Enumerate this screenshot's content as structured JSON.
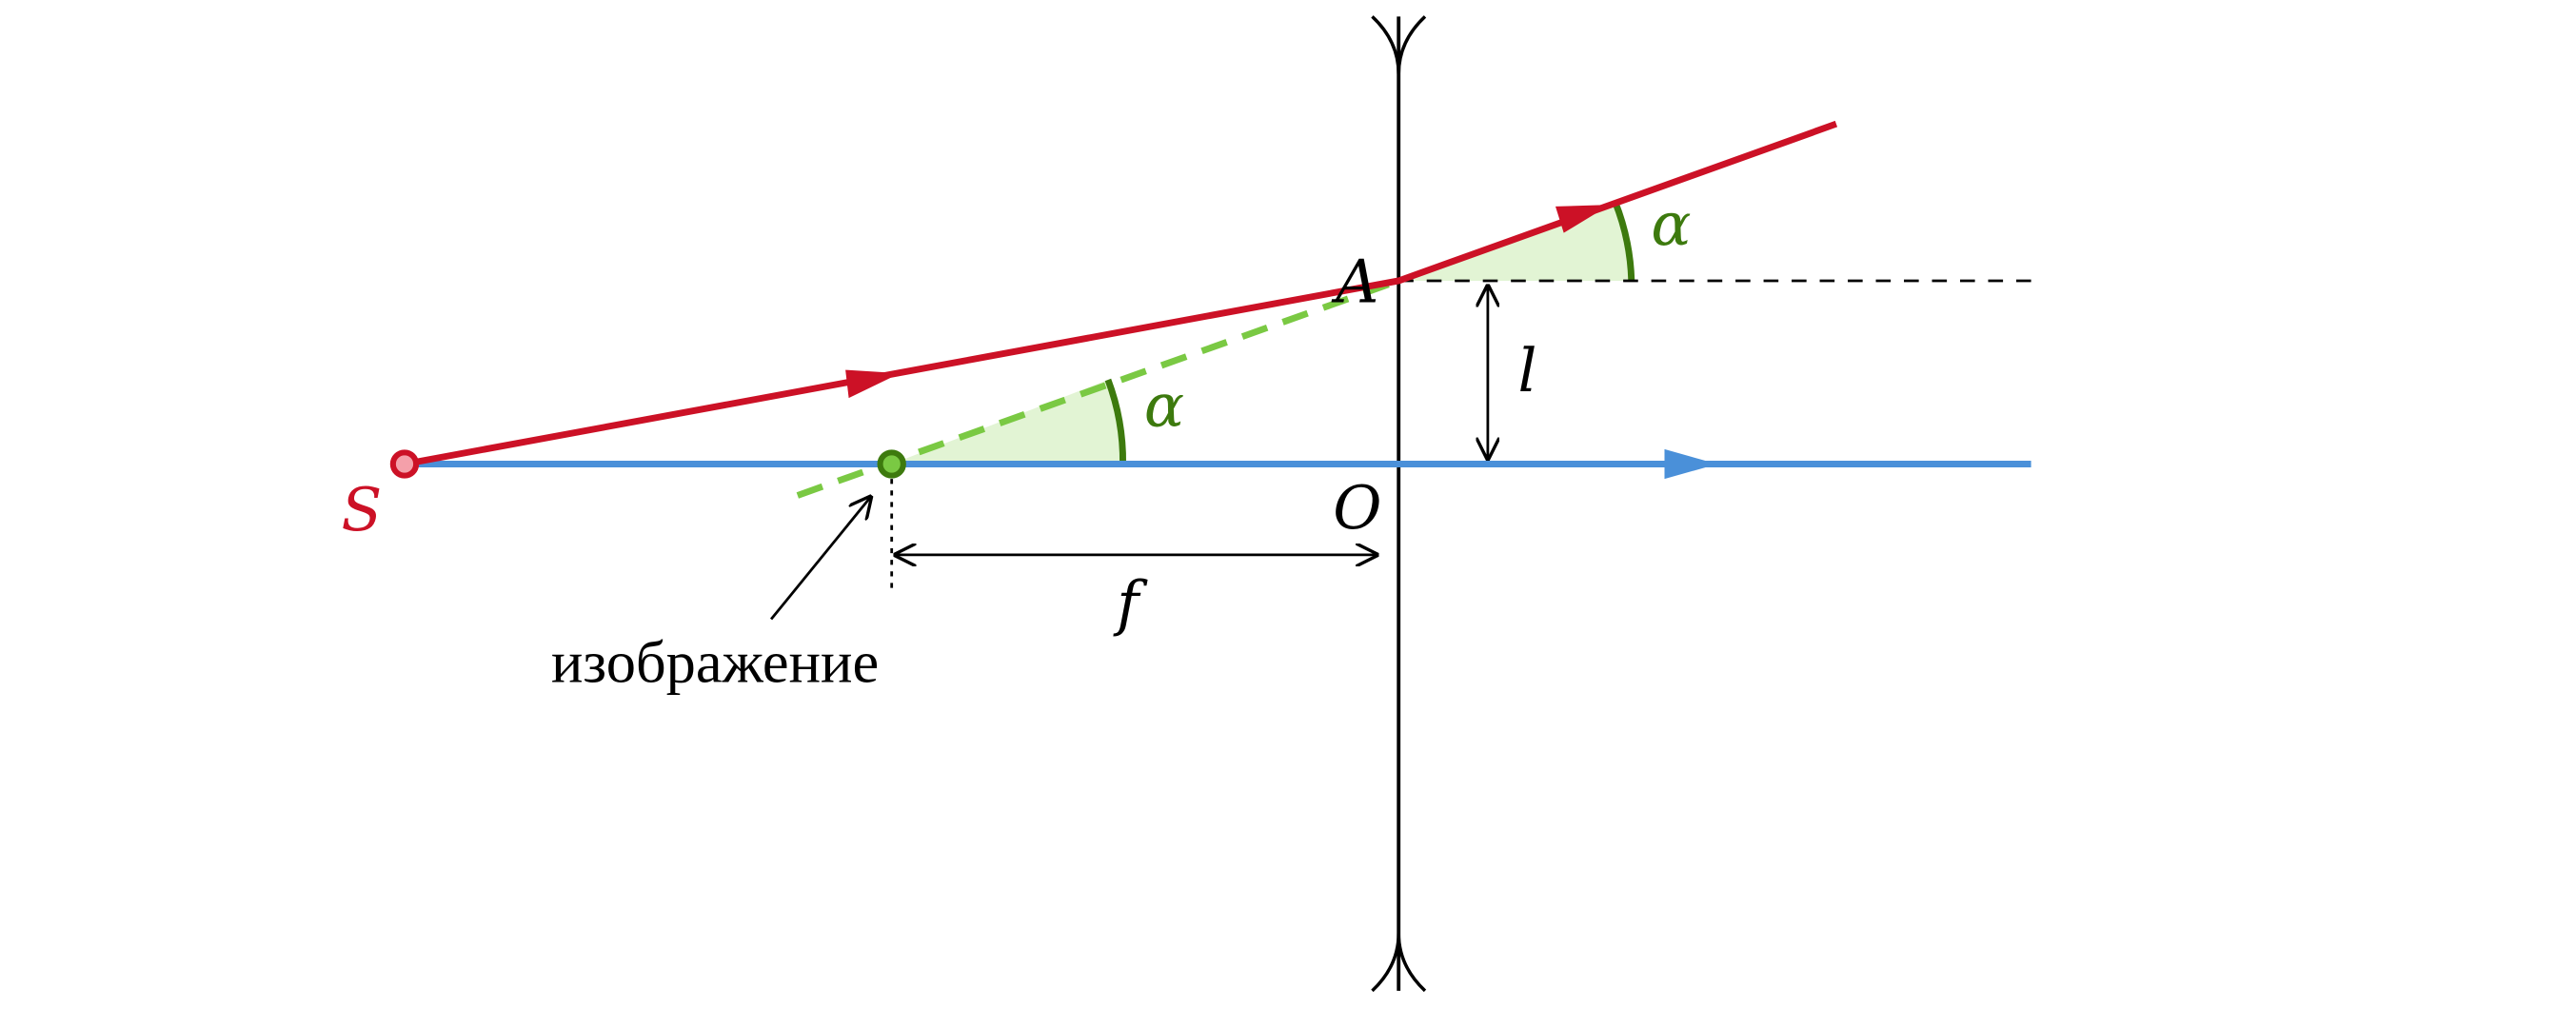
{
  "labels": {
    "source": "S",
    "point_a": "A",
    "center": "O",
    "focal_distance": "f",
    "height": "l",
    "angle_image": "α",
    "angle_exit": "α",
    "image_caption": "изображение"
  }
}
